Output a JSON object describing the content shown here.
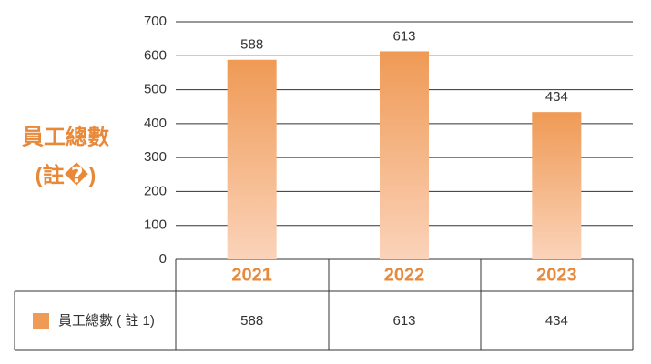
{
  "chart_data": {
    "type": "bar",
    "y_label": [
      "員工總數",
      "(註�)"
    ],
    "categories": [
      "2021",
      "2022",
      "2023"
    ],
    "series": [
      {
        "name": "員工總數 ( 註 1)",
        "color": "#ef9a55",
        "values": [
          588,
          613,
          434
        ]
      }
    ],
    "ylim": [
      0,
      700
    ],
    "yticks": [
      0,
      100,
      200,
      300,
      400,
      500,
      600,
      700
    ],
    "grid": true
  }
}
